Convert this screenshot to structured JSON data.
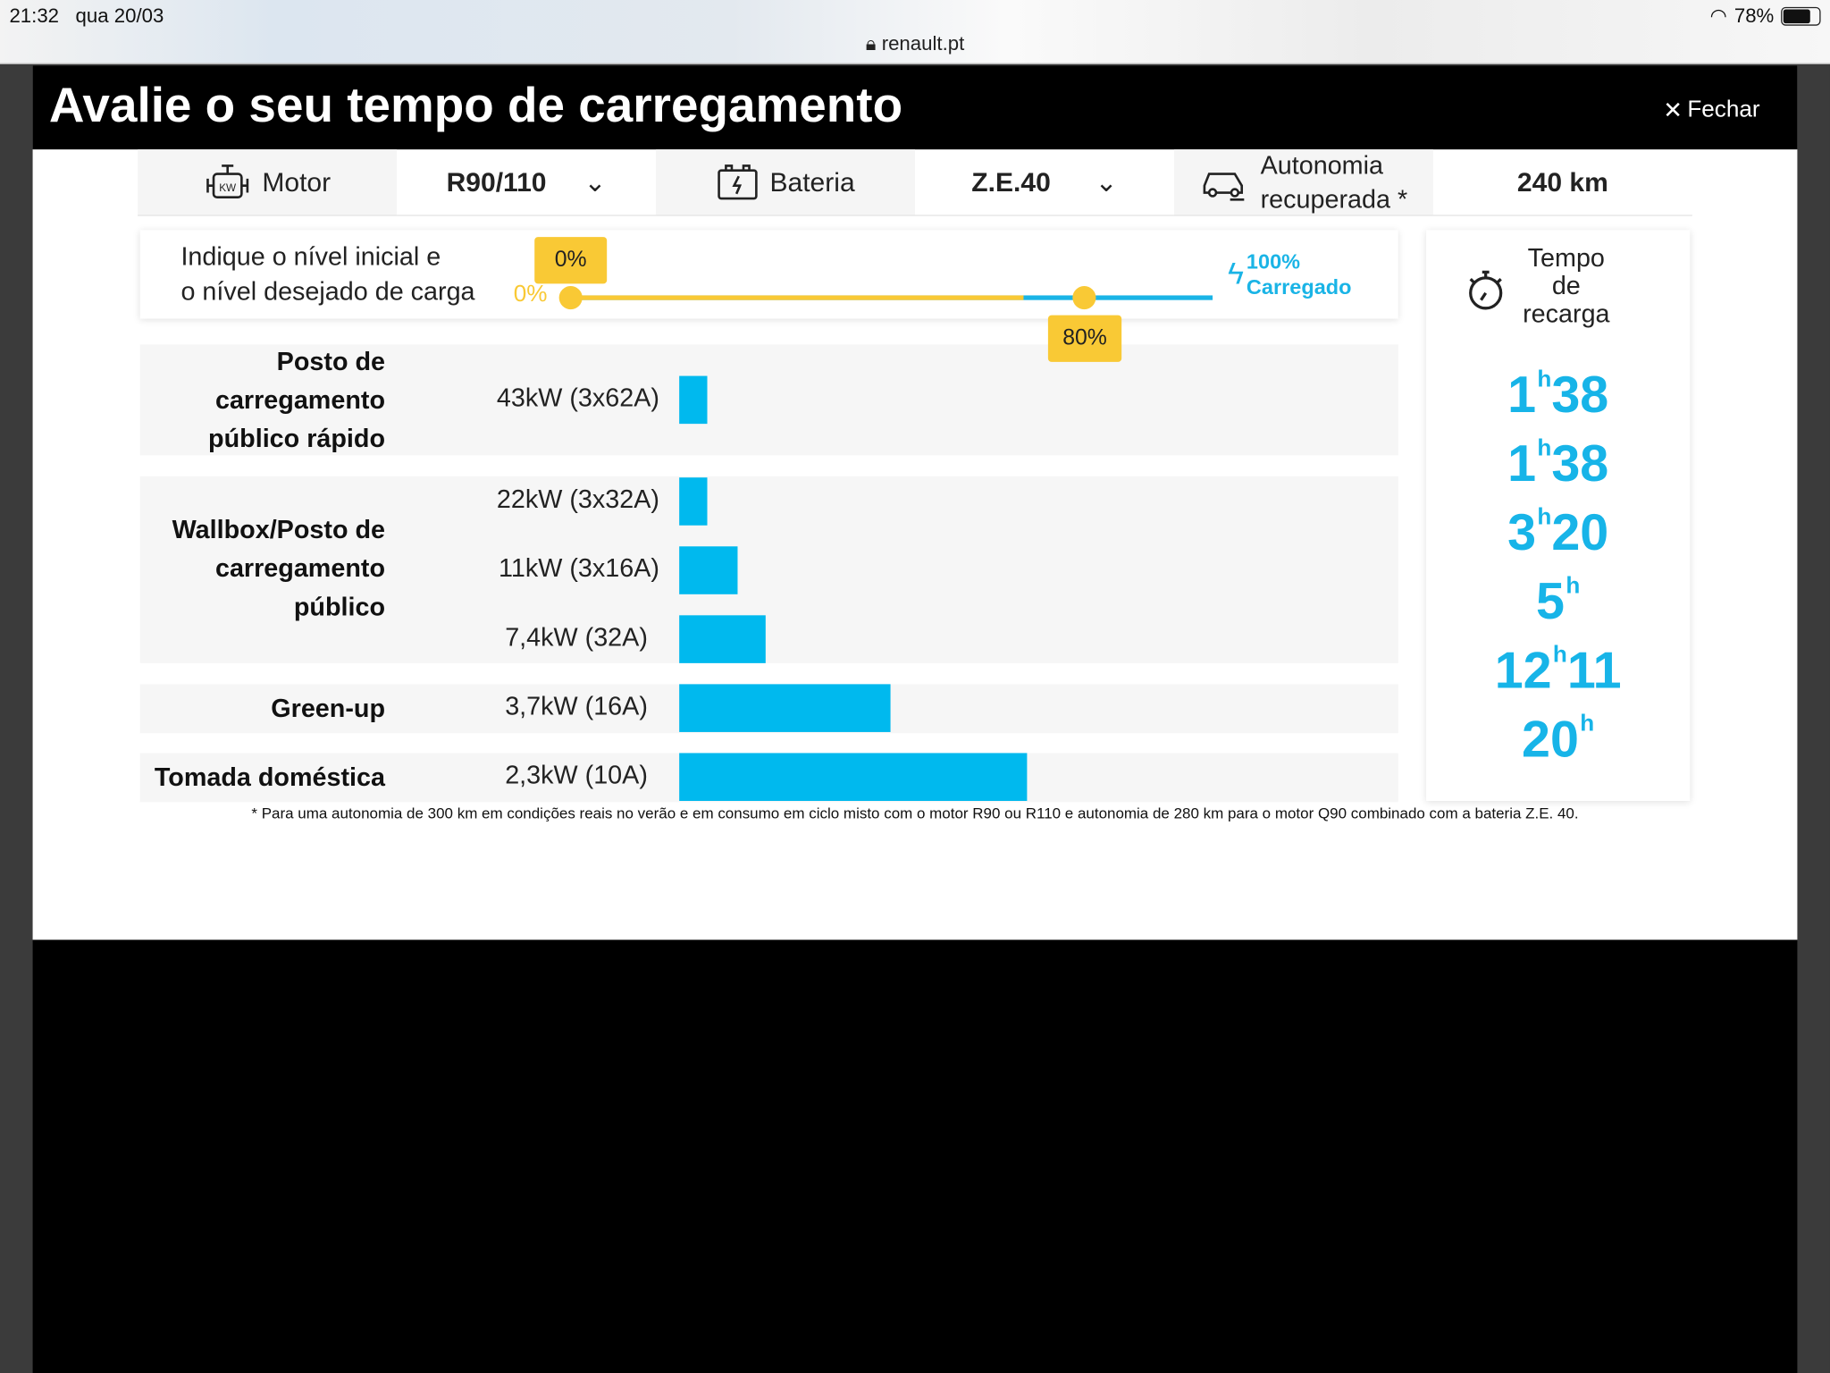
{
  "status": {
    "time": "21:32",
    "date": "qua 20/03",
    "url": "renault.pt",
    "battery": "78%"
  },
  "header": {
    "title": "Avalie o seu tempo de carregamento",
    "close": "Fechar"
  },
  "selectors": {
    "motor_label": "Motor",
    "motor_value": "R90/110",
    "battery_label": "Bateria",
    "battery_value": "Z.E.40",
    "range_label_1": "Autonomia",
    "range_label_2": "recuperada *",
    "range_value": "240 km"
  },
  "slider": {
    "instr_1": "Indique o nível inicial e",
    "instr_2": "o nível desejado de carga",
    "start_badge": "0%",
    "start_label": "0%",
    "end_badge": "80%",
    "full_1": "100%",
    "full_2": "Carregado",
    "start_value": 0,
    "end_value": 80
  },
  "time_panel": {
    "l1": "Tempo",
    "l2": "de",
    "l3": "recarga"
  },
  "categories": {
    "c1a": "Posto de",
    "c1b": "carregamento",
    "c1c": "público rápido",
    "c2a": "Wallbox/Posto de",
    "c2b": "carregamento",
    "c2c": "público",
    "c3": "Green-up",
    "c4": "Tomada doméstica"
  },
  "rows": [
    {
      "power": "43kW (3x62A)",
      "h": "1",
      "m": "38",
      "minutes": 98
    },
    {
      "power": "22kW (3x32A)",
      "h": "1",
      "m": "38",
      "minutes": 98
    },
    {
      "power": "11kW (3x16A)",
      "h": "3",
      "m": "20",
      "minutes": 200
    },
    {
      "power": "7,4kW (32A)",
      "h": "5",
      "m": "",
      "minutes": 300
    },
    {
      "power": "3,7kW (16A)",
      "h": "12",
      "m": "11",
      "minutes": 731
    },
    {
      "power": "2,3kW (10A)",
      "h": "20",
      "m": "",
      "minutes": 1200
    }
  ],
  "footnote": "* Para uma autonomia de 300 km em condições reais no verão e em consumo em ciclo misto com o motor R90 ou R110  e autonomia de 280 km para o motor Q90 combinado com a bateria Z.E. 40.",
  "colors": {
    "accent": "#00b9ee",
    "yellow": "#f9c935"
  }
}
